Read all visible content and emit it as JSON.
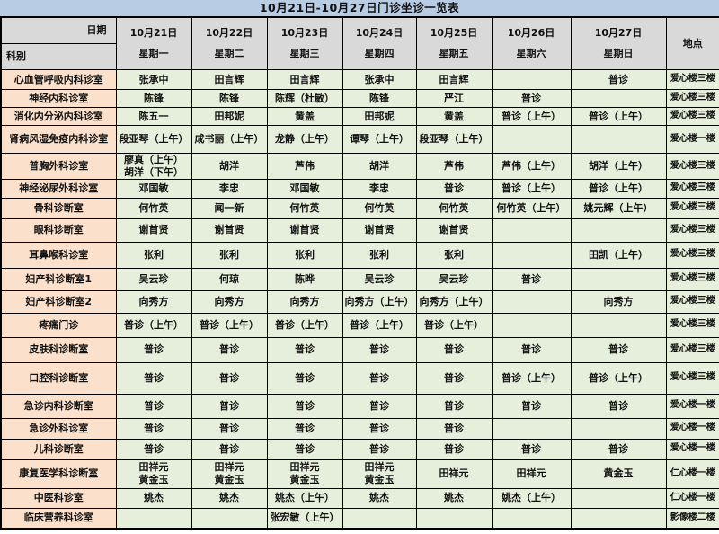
{
  "title": "10月21日-10月27日门诊坐诊一览表",
  "colors": {
    "title_bg": "#b8cce4",
    "header_bg": "#d9d9d9",
    "dept_bg": "#fbe1cc",
    "cell_bg": "#e6efdc",
    "border_color": "#000000",
    "text_color": "#111111"
  },
  "header": {
    "corner_top": "日期",
    "corner_bottom": "科别",
    "location_label": "地点",
    "days": [
      {
        "date": "10月21日",
        "weekday": "星期一"
      },
      {
        "date": "10月22日",
        "weekday": "星期二"
      },
      {
        "date": "10月23日",
        "weekday": "星期三"
      },
      {
        "date": "10月24日",
        "weekday": "星期四"
      },
      {
        "date": "10月25日",
        "weekday": "星期五"
      },
      {
        "date": "10月26日",
        "weekday": "星期六"
      },
      {
        "date": "10月27日",
        "weekday": "星期日"
      }
    ]
  },
  "rows": [
    {
      "dept": "心血管呼吸内科诊室",
      "cells": [
        "张承中",
        "田言辉",
        "田言辉",
        "张承中",
        "田言辉",
        "",
        "普诊"
      ],
      "location": "爱心楼三楼"
    },
    {
      "dept": "神经内科诊室",
      "cells": [
        "陈锋",
        "陈锋",
        "陈辉（杜敏）",
        "陈锋",
        "严江",
        "普诊",
        ""
      ],
      "location": "爱心楼三楼"
    },
    {
      "dept": "消化内分泌内科诊室",
      "cells": [
        "陈五一",
        "田邦妮",
        "黄盖",
        "田邦妮",
        "黄盖",
        "普诊（上午）",
        "普诊（上午）"
      ],
      "location": "爱心楼三楼"
    },
    {
      "dept": "肾病风湿免疫内科诊室",
      "cells": [
        "段亚琴（上午）",
        "成书丽（上午）",
        "龙静（上午）",
        "谭琴（上午）",
        "段亚琴（上午）",
        "",
        ""
      ],
      "location": "爱心楼一楼"
    },
    {
      "dept": "普胸外科诊室",
      "cells": [
        "廖真（上午）\n胡洋（下午）",
        "胡洋",
        "芦伟",
        "胡洋",
        "芦伟",
        "芦伟（上午）",
        "胡洋（上午）"
      ],
      "location": "爱心楼三楼"
    },
    {
      "dept": "神经泌尿外科诊室",
      "cells": [
        "邓国敏",
        "李忠",
        "邓国敏",
        "李忠",
        "普诊",
        "普诊（上午）",
        "普诊（上午）"
      ],
      "location": "爱心楼三楼"
    },
    {
      "dept": "骨科诊断室",
      "cells": [
        "何竹英",
        "闻一新",
        "何竹英",
        "何竹英",
        "何竹英",
        "何竹英（上午）",
        "姚元辉（上午）"
      ],
      "location": "爱心楼三楼"
    },
    {
      "dept": "眼科诊断室",
      "cells": [
        "谢首贤",
        "谢首贤",
        "谢首贤",
        "谢首贤",
        "谢首贤",
        "",
        ""
      ],
      "location": "爱心楼三楼"
    },
    {
      "dept": "耳鼻喉科诊室",
      "cells": [
        "张利",
        "张利",
        "张利",
        "张利",
        "张利",
        "",
        "田凯（上午）"
      ],
      "location": "爱心楼三楼"
    },
    {
      "dept": "妇产科诊断室1",
      "cells": [
        "吴云珍",
        "何琼",
        "陈晔",
        "吴云珍",
        "吴云珍",
        "普诊",
        ""
      ],
      "location": "爱心楼三楼"
    },
    {
      "dept": "妇产科诊断室2",
      "cells": [
        "向秀方",
        "向秀方",
        "向秀方",
        "向秀方（上午）",
        "向秀方（上午）",
        "",
        "向秀方"
      ],
      "location": "爱心楼三楼"
    },
    {
      "dept": "疼痛门诊",
      "cells": [
        "普诊（上午）",
        "普诊（上午）",
        "普诊（上午）",
        "普诊（上午）",
        "普诊（上午）",
        "",
        ""
      ],
      "location": "爱心楼三楼"
    },
    {
      "dept": "皮肤科诊断室",
      "cells": [
        "普诊",
        "普诊",
        "普诊",
        "普诊",
        "普诊",
        "普诊",
        "普诊"
      ],
      "location": "爱心楼三楼"
    },
    {
      "dept": "口腔科诊断室",
      "cells": [
        "普诊",
        "普诊",
        "普诊",
        "普诊",
        "普诊",
        "普诊（上午）",
        "普诊（上午）"
      ],
      "location": "爱心楼三楼"
    },
    {
      "dept": "急诊内科诊断室",
      "cells": [
        "普诊",
        "普诊",
        "普诊",
        "普诊",
        "普诊",
        "普诊",
        "普诊"
      ],
      "location": "爱心楼一楼"
    },
    {
      "dept": "急诊外科诊室",
      "cells": [
        "普诊",
        "普诊",
        "普诊",
        "普诊",
        "普诊",
        "",
        ""
      ],
      "location": "爱心楼一楼"
    },
    {
      "dept": "儿科诊断室",
      "cells": [
        "普诊",
        "普诊",
        "普诊",
        "普诊",
        "普诊",
        "普诊",
        "普诊"
      ],
      "location": "爱心楼一楼"
    },
    {
      "dept": "康复医学科诊断室",
      "cells": [
        "田祥元\n黄金玉",
        "田祥元\n黄金玉",
        "田祥元\n黄金玉",
        "田祥元\n黄金玉",
        "田祥元",
        "田祥元",
        "黄金玉"
      ],
      "location": "仁心楼一楼"
    },
    {
      "dept": "中医科诊室",
      "cells": [
        "姚杰",
        "姚杰",
        "姚杰（上午）",
        "姚杰",
        "姚杰",
        "姚杰（上午）",
        ""
      ],
      "location": "仁心楼一楼"
    },
    {
      "dept": "临床营养科诊室",
      "cells": [
        "",
        "",
        "张宏敏（上午）",
        "",
        "",
        "",
        ""
      ],
      "location": "影像楼二楼"
    }
  ]
}
